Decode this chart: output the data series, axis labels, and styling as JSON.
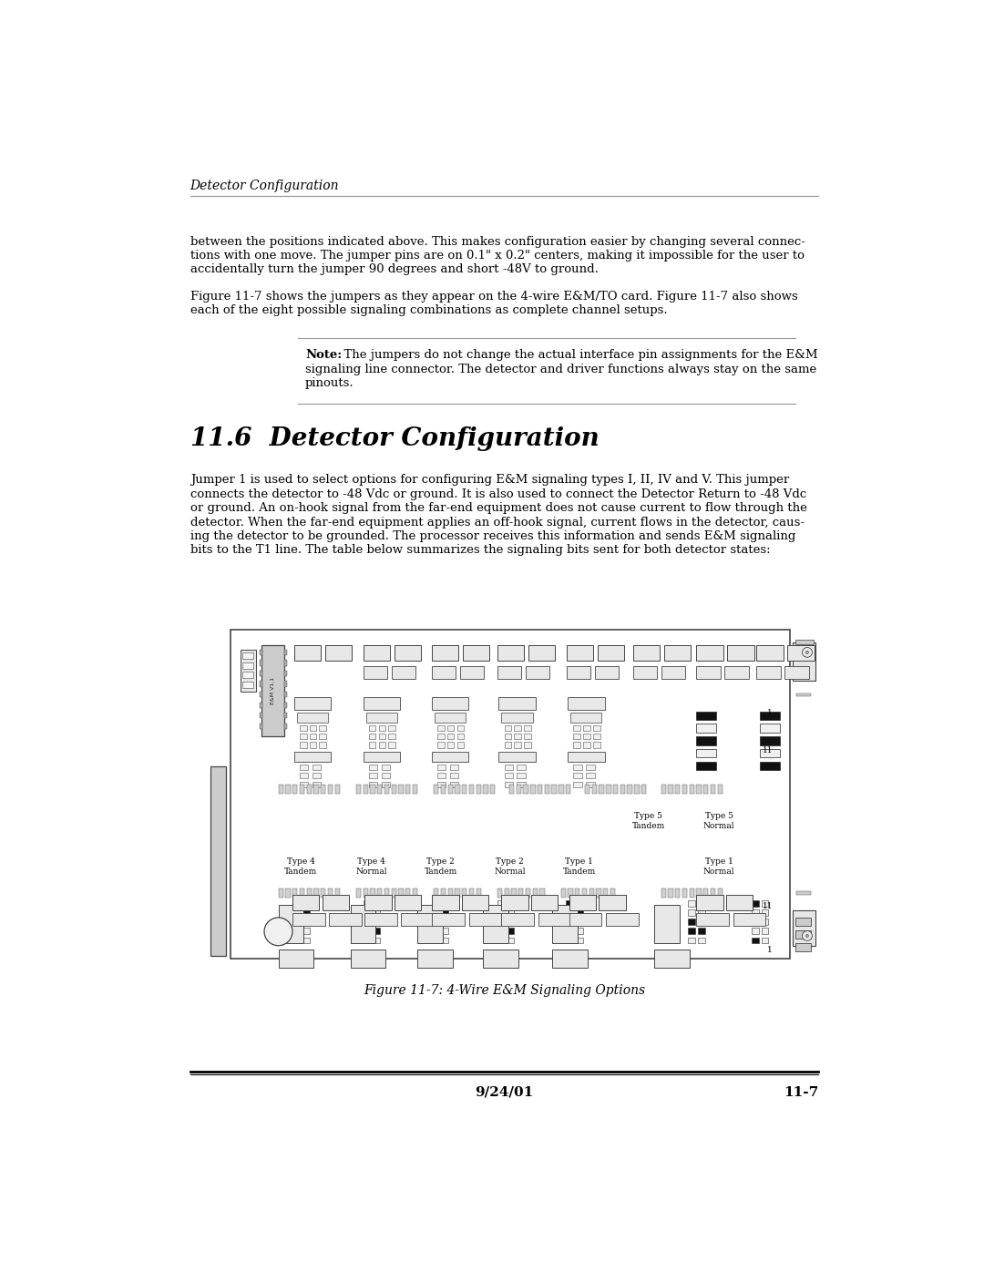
{
  "bg_color": "#ffffff",
  "header_italic": "Detector Configuration",
  "para1_lines": [
    "between the positions indicated above. This makes configuration easier by changing several connec-",
    "tions with one move. The jumper pins are on 0.1\" x 0.2\" centers, making it impossible for the user to",
    "accidentally turn the jumper 90 degrees and short -48V to ground."
  ],
  "para2_lines": [
    "Figure 11-7 shows the jumpers as they appear on the 4-wire E&M/TO card. Figure 11-7 also shows",
    "each of the eight possible signaling combinations as complete channel setups."
  ],
  "note_bold": "Note:",
  "note_text": "  The jumpers do not change the actual interface pin assignments for the E&M",
  "note_line2": "signaling line connector. The detector and driver functions always stay on the same",
  "note_line3": "pinouts.",
  "section_title": "11.6  Detector Configuration",
  "body_lines": [
    "Jumper 1 is used to select options for configuring E&M signaling types I, II, IV and V. This jumper",
    "connects the detector to -48 Vdc or ground. It is also used to connect the Detector Return to -48 Vdc",
    "or ground. An on-hook signal from the far-end equipment does not cause current to flow through the",
    "detector. When the far-end equipment applies an off-hook signal, current flows in the detector, caus-",
    "ing the detector to be grounded. The processor receives this information and sends E&M signaling",
    "bits to the T1 line. The table below summarizes the signaling bits sent for both detector states:"
  ],
  "figure_caption": "Figure 11-7: 4-Wire E&M Signaling Options",
  "footer_left": "9/24/01",
  "footer_right": "11-7",
  "text_color": "#000000",
  "line_color": "#999999",
  "footer_line_color": "#000000",
  "board_edge": "#444444",
  "board_bg": "#ffffff",
  "comp_light": "#e8e8e8",
  "comp_mid": "#cccccc",
  "comp_dark": "#aaaaaa",
  "comp_black": "#111111"
}
